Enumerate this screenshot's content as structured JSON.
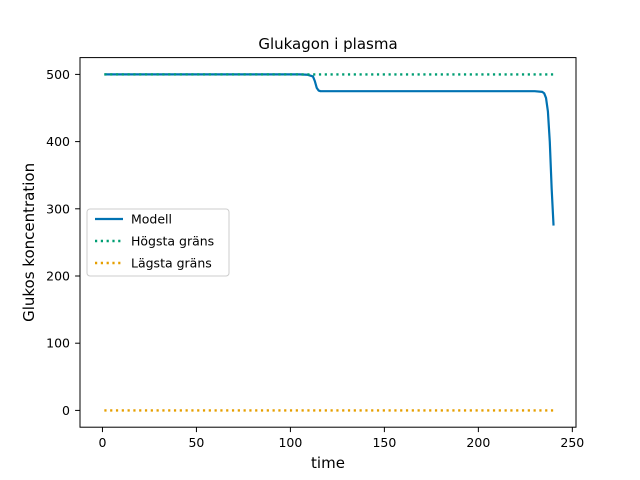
{
  "chart_data": {
    "type": "line",
    "title": "Glukagon i plasma",
    "xlabel": "time",
    "ylabel": "Glukos koncentration",
    "xlim": [
      -11.95,
      251.95
    ],
    "ylim": [
      -25,
      525
    ],
    "xticks": [
      0,
      50,
      100,
      150,
      200,
      250
    ],
    "yticks": [
      0,
      100,
      200,
      300,
      400,
      500
    ],
    "grid": false,
    "legend_position": "center-left",
    "series": [
      {
        "name": "Modell",
        "color": "#0072B2",
        "style": "solid",
        "x": [
          1,
          20,
          50,
          80,
          105,
          109,
          112,
          113,
          114,
          115,
          116,
          150,
          200,
          230,
          234,
          235,
          236,
          237,
          238,
          239,
          240
        ],
        "y": [
          500,
          500,
          500,
          500,
          500,
          499.5,
          497,
          490,
          480,
          476,
          475,
          475,
          475,
          475,
          474,
          472,
          465,
          445,
          400,
          330,
          275
        ]
      },
      {
        "name": "Högsta gräns",
        "color": "#009E73",
        "style": "dotted",
        "x": [
          1,
          240
        ],
        "y": [
          500,
          500
        ]
      },
      {
        "name": "Lägsta gräns",
        "color": "#E69F00",
        "style": "dotted",
        "x": [
          1,
          240
        ],
        "y": [
          0,
          0
        ]
      }
    ]
  }
}
